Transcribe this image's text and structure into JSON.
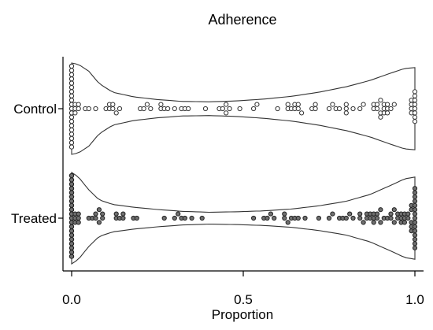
{
  "chart_data": {
    "type": "violin-dotplot",
    "title": "Adherence",
    "xlabel": "Proportion",
    "ylabel": "",
    "xlim": [
      0.0,
      1.0
    ],
    "xticks": [
      {
        "value": 0.0,
        "label": "0.0"
      },
      {
        "value": 0.5,
        "label": "0.5"
      },
      {
        "value": 1.0,
        "label": "1.0"
      }
    ],
    "grid": false,
    "groups": [
      {
        "name": "Control",
        "marker": "open",
        "density_width": [
          [
            0.0,
            1.0
          ],
          [
            0.02,
            0.97
          ],
          [
            0.05,
            0.82
          ],
          [
            0.08,
            0.55
          ],
          [
            0.12,
            0.36
          ],
          [
            0.18,
            0.26
          ],
          [
            0.25,
            0.2
          ],
          [
            0.32,
            0.16
          ],
          [
            0.4,
            0.15
          ],
          [
            0.48,
            0.17
          ],
          [
            0.56,
            0.21
          ],
          [
            0.64,
            0.27
          ],
          [
            0.72,
            0.36
          ],
          [
            0.8,
            0.48
          ],
          [
            0.87,
            0.62
          ],
          [
            0.93,
            0.78
          ],
          [
            0.97,
            0.88
          ],
          [
            1.0,
            0.9
          ]
        ],
        "points": [
          0,
          0,
          0,
          0,
          0,
          0,
          0,
          0,
          0,
          0,
          0,
          0,
          0,
          0,
          0,
          0,
          0,
          0,
          0,
          0,
          0,
          0,
          0,
          0,
          0,
          0,
          0,
          0,
          0,
          0,
          0,
          0,
          0,
          0,
          0,
          0,
          0,
          0,
          0,
          0,
          0.01,
          0.01,
          0.01,
          0.02,
          0.02,
          0.04,
          0.05,
          0.07,
          0.1,
          0.11,
          0.11,
          0.12,
          0.12,
          0.13,
          0.14,
          0.2,
          0.21,
          0.22,
          0.23,
          0.26,
          0.26,
          0.27,
          0.28,
          0.3,
          0.32,
          0.33,
          0.34,
          0.39,
          0.43,
          0.44,
          0.45,
          0.45,
          0.46,
          0.49,
          0.53,
          0.54,
          0.6,
          0.63,
          0.63,
          0.64,
          0.65,
          0.65,
          0.66,
          0.66,
          0.67,
          0.7,
          0.71,
          0.71,
          0.75,
          0.76,
          0.77,
          0.78,
          0.8,
          0.8,
          0.8,
          0.82,
          0.84,
          0.85,
          0.88,
          0.88,
          0.89,
          0.89,
          0.9,
          0.9,
          0.9,
          0.91,
          0.91,
          0.91,
          0.92,
          0.92,
          0.92,
          0.93,
          0.94,
          0.99,
          0.99,
          0.99,
          0.99,
          1.0,
          1.0,
          1.0,
          1.0,
          1.0,
          1.0,
          1.0,
          1.0
        ]
      },
      {
        "name": "Treated",
        "marker": "filled",
        "density_width": [
          [
            0.0,
            1.0
          ],
          [
            0.02,
            0.9
          ],
          [
            0.05,
            0.62
          ],
          [
            0.08,
            0.4
          ],
          [
            0.12,
            0.3
          ],
          [
            0.18,
            0.24
          ],
          [
            0.25,
            0.19
          ],
          [
            0.32,
            0.15
          ],
          [
            0.4,
            0.13
          ],
          [
            0.48,
            0.14
          ],
          [
            0.56,
            0.16
          ],
          [
            0.64,
            0.2
          ],
          [
            0.72,
            0.27
          ],
          [
            0.8,
            0.37
          ],
          [
            0.87,
            0.52
          ],
          [
            0.93,
            0.72
          ],
          [
            0.97,
            0.86
          ],
          [
            1.0,
            0.9
          ]
        ],
        "points": [
          0,
          0,
          0,
          0,
          0,
          0,
          0,
          0,
          0,
          0,
          0,
          0,
          0,
          0,
          0,
          0,
          0,
          0,
          0,
          0,
          0,
          0,
          0,
          0,
          0,
          0,
          0,
          0,
          0,
          0,
          0,
          0,
          0,
          0,
          0,
          0,
          0,
          0,
          0,
          0,
          0,
          0,
          0,
          0,
          0,
          0,
          0,
          0,
          0,
          0,
          0,
          0,
          0,
          0,
          0,
          0,
          0,
          0,
          0,
          0,
          0.01,
          0.01,
          0.01,
          0.02,
          0.02,
          0.02,
          0.05,
          0.06,
          0.07,
          0.07,
          0.08,
          0.08,
          0.09,
          0.09,
          0.13,
          0.13,
          0.14,
          0.15,
          0.15,
          0.18,
          0.19,
          0.27,
          0.3,
          0.31,
          0.32,
          0.33,
          0.35,
          0.38,
          0.53,
          0.56,
          0.57,
          0.58,
          0.59,
          0.62,
          0.62,
          0.63,
          0.64,
          0.65,
          0.66,
          0.68,
          0.72,
          0.75,
          0.76,
          0.78,
          0.79,
          0.8,
          0.81,
          0.82,
          0.84,
          0.84,
          0.85,
          0.86,
          0.86,
          0.87,
          0.87,
          0.88,
          0.88,
          0.88,
          0.89,
          0.89,
          0.9,
          0.9,
          0.91,
          0.92,
          0.93,
          0.93,
          0.94,
          0.94,
          0.95,
          0.95,
          0.96,
          0.96,
          0.96,
          0.97,
          0.97,
          0.97,
          0.98,
          0.98,
          0.99,
          0.99,
          0.99,
          0.99,
          0.99,
          1.0,
          1.0,
          1.0,
          1.0,
          1.0,
          1.0,
          1.0,
          1.0,
          1.0,
          1.0,
          1.0,
          1.0,
          1.0,
          1.0,
          1.0
        ]
      }
    ]
  }
}
